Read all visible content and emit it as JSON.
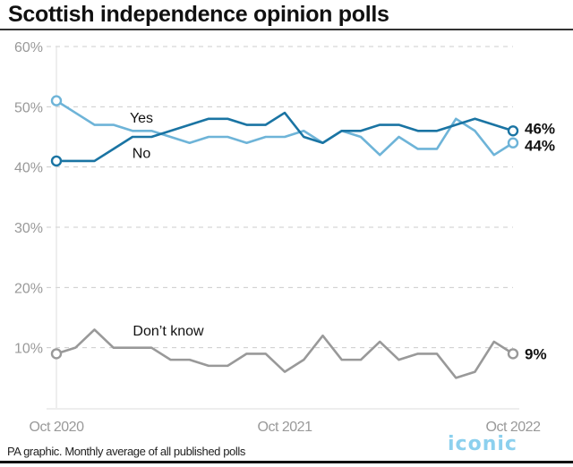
{
  "title": "Scottish independence opinion polls",
  "source": "PA graphic. Monthly average of all published polls",
  "watermark": "iconic",
  "colors": {
    "yes": "#6eb4d8",
    "no": "#1a74a3",
    "dont_know": "#999999",
    "grid": "#cccccc",
    "tick": "#999999"
  },
  "chart_data": {
    "type": "line",
    "title": "Scottish independence opinion polls",
    "xlabel": "",
    "ylabel": "",
    "ylim": [
      0,
      60
    ],
    "yticks": [
      10,
      20,
      30,
      40,
      50,
      60
    ],
    "ytick_labels": [
      "10%",
      "20%",
      "30%",
      "40%",
      "50%",
      "60%"
    ],
    "x_tick_labels": [
      {
        "index": 0,
        "label": "Oct 2020"
      },
      {
        "index": 12,
        "label": "Oct 2021"
      },
      {
        "index": 24,
        "label": "Oct 2022"
      }
    ],
    "grid": true,
    "x": [
      "Oct 2020",
      "Nov 2020",
      "Dec 2020",
      "Jan 2021",
      "Feb 2021",
      "Mar 2021",
      "Apr 2021",
      "May 2021",
      "Jun 2021",
      "Jul 2021",
      "Aug 2021",
      "Sep 2021",
      "Oct 2021",
      "Nov 2021",
      "Dec 2021",
      "Jan 2022",
      "Feb 2022",
      "Mar 2022",
      "Apr 2022",
      "May 2022",
      "Jun 2022",
      "Jul 2022",
      "Aug 2022",
      "Sep 2022",
      "Oct 2022"
    ],
    "series": [
      {
        "name": "Yes",
        "key": "yes",
        "label": "Yes",
        "end_label": "44%",
        "values": [
          51,
          49,
          47,
          47,
          46,
          46,
          45,
          44,
          45,
          45,
          44,
          45,
          45,
          46,
          44,
          46,
          45,
          42,
          45,
          43,
          43,
          48,
          46,
          42,
          44
        ]
      },
      {
        "name": "No",
        "key": "no",
        "label": "No",
        "end_label": "46%",
        "values": [
          41,
          41,
          41,
          43,
          45,
          45,
          46,
          47,
          48,
          48,
          47,
          47,
          49,
          45,
          44,
          46,
          46,
          47,
          47,
          46,
          46,
          47,
          48,
          47,
          46
        ]
      },
      {
        "name": "Don't know",
        "key": "dont_know",
        "label": "Don’t know",
        "end_label": "9%",
        "values": [
          9,
          10,
          13,
          10,
          10,
          10,
          8,
          8,
          7,
          7,
          9,
          9,
          6,
          8,
          12,
          8,
          8,
          11,
          8,
          9,
          9,
          5,
          6,
          11,
          9
        ]
      }
    ]
  }
}
